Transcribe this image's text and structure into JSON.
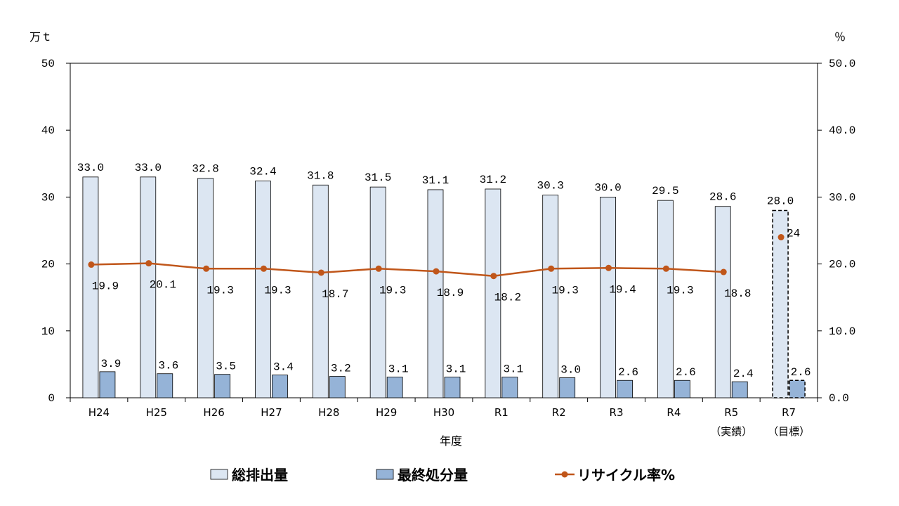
{
  "chart_data": {
    "type": "bar",
    "categories": [
      "H24",
      "H25",
      "H26",
      "H27",
      "H28",
      "H29",
      "H30",
      "R1",
      "R2",
      "R3",
      "R4",
      "R5",
      "R7"
    ],
    "category_sublabels": [
      "",
      "",
      "",
      "",
      "",
      "",
      "",
      "",
      "",
      "",
      "",
      "（実績）",
      "（目標）"
    ],
    "xlabel": "年度",
    "y_left": {
      "unit": "万ｔ",
      "ylim": [
        0,
        50
      ],
      "ticks": [
        "0",
        "10",
        "20",
        "30",
        "40",
        "50"
      ]
    },
    "y_right": {
      "unit": "％",
      "ylim": [
        0,
        50
      ],
      "ticks": [
        "0.0",
        "10.0",
        "20.0",
        "30.0",
        "40.0",
        "50.0"
      ]
    },
    "series": [
      {
        "name": "総排出量",
        "kind": "bar",
        "axis": "left",
        "color": "#dce6f2",
        "values": [
          33.0,
          33.0,
          32.8,
          32.4,
          31.8,
          31.5,
          31.1,
          31.2,
          30.3,
          30.0,
          29.5,
          28.6,
          28.0
        ],
        "labels": [
          "33.0",
          "33.0",
          "32.8",
          "32.4",
          "31.8",
          "31.5",
          "31.1",
          "31.2",
          "30.3",
          "30.0",
          "29.5",
          "28.6",
          "28.0"
        ],
        "target_last": true
      },
      {
        "name": "最終処分量",
        "kind": "bar",
        "axis": "left",
        "color": "#95b3d7",
        "values": [
          3.9,
          3.6,
          3.5,
          3.4,
          3.2,
          3.1,
          3.1,
          3.1,
          3.0,
          2.6,
          2.6,
          2.4,
          2.6
        ],
        "labels": [
          "3.9",
          "3.6",
          "3.5",
          "3.4",
          "3.2",
          "3.1",
          "3.1",
          "3.1",
          "3.0",
          "2.6",
          "2.6",
          "2.4",
          "2.6"
        ],
        "target_last": true
      },
      {
        "name": "リサイクル率%",
        "kind": "line",
        "axis": "right",
        "color": "#c0561a",
        "values": [
          19.9,
          20.1,
          19.3,
          19.3,
          18.7,
          19.3,
          18.9,
          18.2,
          19.3,
          19.4,
          19.3,
          18.8,
          null
        ],
        "labels": [
          "19.9",
          "20.1",
          "19.3",
          "19.3",
          "18.7",
          "19.3",
          "18.9",
          "18.2",
          "19.3",
          "19.4",
          "19.3",
          "18.8",
          ""
        ],
        "target_point": {
          "category": "R7",
          "value": 24,
          "label": "24"
        }
      }
    ],
    "legend": {
      "position": "bottom"
    }
  }
}
